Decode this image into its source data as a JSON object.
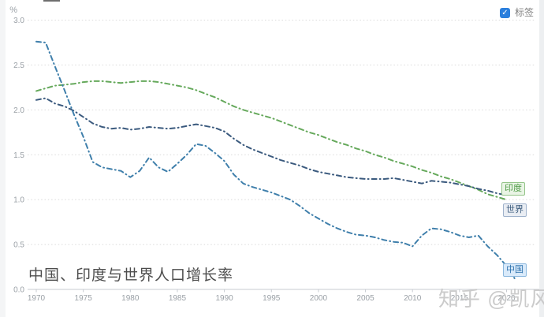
{
  "title": "中国、印度与世界人口增长率",
  "watermark": "知乎 @凯风",
  "controls": {
    "labels_checkbox": {
      "label": "标签",
      "checked": true,
      "color": "#2b7fdd"
    }
  },
  "series_labels": {
    "china": "中国",
    "india": "印度",
    "world": "世界"
  },
  "colors": {
    "china_line": "#3f7fab",
    "india_line": "#66a95c",
    "world_line": "#3b5a7e",
    "grid": "#dadada",
    "axis": "#c7cbd1",
    "axis_text": "#9aa0a6"
  },
  "chart_data": {
    "type": "line",
    "title": "中国、印度与世界人口增长率",
    "xlabel": "",
    "ylabel": "%",
    "ylim": [
      0,
      3.0
    ],
    "y_ticks": [
      3.0,
      2.5,
      2.0,
      1.5,
      1.0,
      0.5,
      0.0
    ],
    "x_start_year": 1970,
    "x_ticks": [
      1970,
      1975,
      1980,
      1985,
      1990,
      1995,
      2000,
      2005,
      2010,
      2015,
      2020
    ],
    "grid": "dotted-horizontal",
    "legend_position": "end-of-line-labels-right",
    "line_style": "dash-dot",
    "series": [
      {
        "name": "印度",
        "color": "#66a95c",
        "years": [
          1970,
          2020
        ],
        "values": [
          2.21,
          2.24,
          2.27,
          2.28,
          2.29,
          2.31,
          2.32,
          2.32,
          2.31,
          2.3,
          2.31,
          2.32,
          2.32,
          2.31,
          2.29,
          2.27,
          2.25,
          2.22,
          2.18,
          2.14,
          2.09,
          2.04,
          2.0,
          1.97,
          1.94,
          1.91,
          1.87,
          1.83,
          1.79,
          1.75,
          1.72,
          1.68,
          1.64,
          1.61,
          1.57,
          1.54,
          1.5,
          1.47,
          1.43,
          1.4,
          1.37,
          1.33,
          1.3,
          1.26,
          1.23,
          1.19,
          1.15,
          1.11,
          1.06,
          1.03,
          1.0
        ]
      },
      {
        "name": "世界",
        "color": "#3b5a7e",
        "years": [
          1970,
          2020
        ],
        "values": [
          2.11,
          2.13,
          2.07,
          2.04,
          1.99,
          1.92,
          1.85,
          1.81,
          1.79,
          1.8,
          1.78,
          1.79,
          1.81,
          1.8,
          1.79,
          1.8,
          1.82,
          1.84,
          1.82,
          1.8,
          1.76,
          1.68,
          1.61,
          1.56,
          1.52,
          1.48,
          1.44,
          1.41,
          1.38,
          1.34,
          1.31,
          1.29,
          1.27,
          1.25,
          1.24,
          1.23,
          1.23,
          1.23,
          1.24,
          1.22,
          1.2,
          1.18,
          1.21,
          1.2,
          1.19,
          1.17,
          1.15,
          1.12,
          1.1,
          1.07,
          1.05
        ]
      },
      {
        "name": "中国",
        "color": "#3f7fab",
        "years": [
          1970,
          2021
        ],
        "values": [
          2.76,
          2.75,
          2.48,
          2.22,
          1.95,
          1.7,
          1.42,
          1.36,
          1.34,
          1.32,
          1.25,
          1.32,
          1.47,
          1.36,
          1.31,
          1.4,
          1.5,
          1.62,
          1.6,
          1.52,
          1.43,
          1.28,
          1.18,
          1.14,
          1.11,
          1.08,
          1.04,
          1.0,
          0.93,
          0.85,
          0.79,
          0.73,
          0.68,
          0.64,
          0.61,
          0.6,
          0.58,
          0.55,
          0.53,
          0.52,
          0.48,
          0.6,
          0.68,
          0.67,
          0.64,
          0.6,
          0.58,
          0.6,
          0.48,
          0.38,
          0.26,
          0.1
        ]
      }
    ]
  }
}
